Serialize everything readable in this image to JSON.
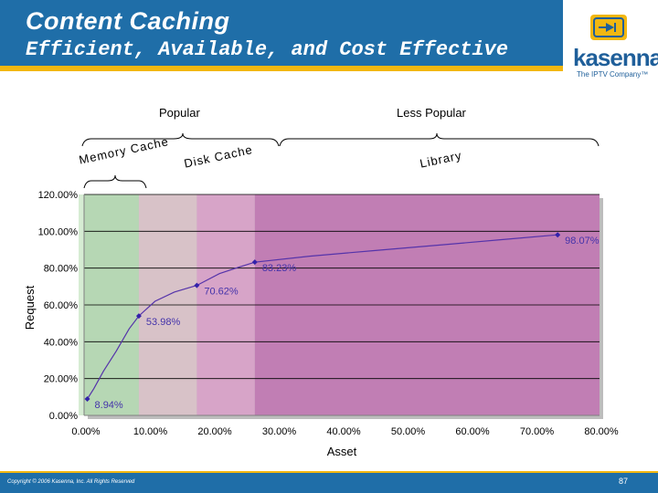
{
  "slide": {
    "title": "Content Caching",
    "subtitle": "Efficient, Available, and Cost Effective",
    "logo_text": "kasenna",
    "logo_tagline": "The IPTV Company™",
    "popular_label": "Popular",
    "less_popular_label": "Less Popular",
    "memory_cache_label": "Memory Cache",
    "disk_cache_label": "Disk Cache",
    "library_label": "Library",
    "copyright": "Copyright © 2006 Kasenna, Inc. All Rights Reserved",
    "page_number": "87"
  },
  "colors": {
    "header_blue": "#1f6ea8",
    "accent_yellow": "#f2b711",
    "memory_band": "#b6d7b4",
    "disk_band_1": "#d8c2c8",
    "disk_band_2": "#d7a4c8",
    "library_band": "#c17eb4",
    "line_color": "#5533aa"
  },
  "chart_data": {
    "type": "line",
    "title": "",
    "xlabel": "Asset",
    "ylabel": "Request",
    "xlim": [
      0,
      80
    ],
    "ylim": [
      0,
      120
    ],
    "grid": true,
    "x_tick_labels": [
      "0.00%",
      "10.00%",
      "20.00%",
      "30.00%",
      "40.00%",
      "50.00%",
      "60.00%",
      "70.00%",
      "80.00%"
    ],
    "y_tick_labels": [
      "0.00%",
      "20.00%",
      "40.00%",
      "60.00%",
      "80.00%",
      "100.00%",
      "120.00%"
    ],
    "x_ticks": [
      0,
      10,
      20,
      30,
      40,
      50,
      60,
      70,
      80
    ],
    "y_ticks": [
      0,
      20,
      40,
      60,
      80,
      100,
      120
    ],
    "bands": [
      {
        "name": "Memory Cache",
        "from": 0,
        "to": 8.5
      },
      {
        "name": "Disk Cache A",
        "from": 8.5,
        "to": 17.5
      },
      {
        "name": "Disk Cache B",
        "from": 17.5,
        "to": 26.5
      },
      {
        "name": "Library",
        "from": 26.5,
        "to": 80
      }
    ],
    "series": [
      {
        "name": "Request",
        "points": [
          {
            "x": 0.5,
            "y": 8.94,
            "label": "8.94%"
          },
          {
            "x": 1.5,
            "y": 14.5,
            "label": ""
          },
          {
            "x": 3.0,
            "y": 24.0,
            "label": ""
          },
          {
            "x": 5.0,
            "y": 35.0,
            "label": ""
          },
          {
            "x": 7.0,
            "y": 47.0,
            "label": ""
          },
          {
            "x": 8.5,
            "y": 53.98,
            "label": "53.98%"
          },
          {
            "x": 11.0,
            "y": 62.0,
            "label": ""
          },
          {
            "x": 14.0,
            "y": 67.0,
            "label": ""
          },
          {
            "x": 17.5,
            "y": 70.62,
            "label": "70.62%"
          },
          {
            "x": 21.0,
            "y": 77.0,
            "label": ""
          },
          {
            "x": 24.0,
            "y": 80.5,
            "label": ""
          },
          {
            "x": 26.5,
            "y": 83.23,
            "label": "83.23%"
          },
          {
            "x": 35.0,
            "y": 86.5,
            "label": ""
          },
          {
            "x": 45.0,
            "y": 89.5,
            "label": ""
          },
          {
            "x": 55.0,
            "y": 92.5,
            "label": ""
          },
          {
            "x": 65.0,
            "y": 95.5,
            "label": ""
          },
          {
            "x": 73.5,
            "y": 98.07,
            "label": "98.07%"
          }
        ]
      }
    ]
  }
}
